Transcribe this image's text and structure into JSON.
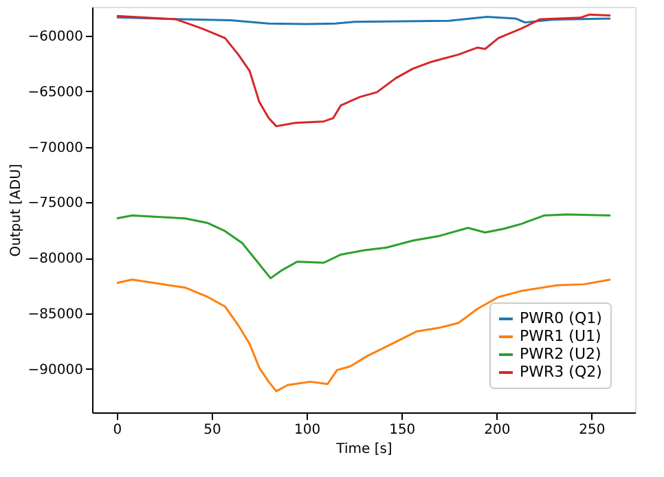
{
  "chart_data": {
    "type": "line",
    "xlabel": "Time [s]",
    "ylabel": "Output [ADU]",
    "xlim": [
      -13,
      273
    ],
    "ylim": [
      -93900,
      -57400
    ],
    "xticks": [
      0,
      50,
      100,
      150,
      200,
      250
    ],
    "yticks": [
      -60000,
      -65000,
      -70000,
      -75000,
      -80000,
      -85000,
      -90000
    ],
    "grid": false,
    "legend": "bottom right",
    "marker": "none",
    "line_style": "solid",
    "series": [
      {
        "name": "PWR0 (Q1)",
        "color": "#1f77b4",
        "x": [
          0,
          30,
          60,
          80,
          100,
          115,
          125,
          150,
          175,
          195,
          210,
          215,
          230,
          260
        ],
        "values": [
          -58350,
          -58500,
          -58600,
          -58900,
          -58950,
          -58900,
          -58750,
          -58700,
          -58650,
          -58300,
          -58450,
          -58800,
          -58550,
          -58450
        ]
      },
      {
        "name": "PWR1 (U1)",
        "color": "#ff7f0e",
        "x": [
          0,
          8,
          36,
          48,
          57,
          64,
          70,
          75,
          80,
          84,
          90,
          102,
          111,
          116,
          123,
          132,
          147,
          158,
          170,
          180,
          190,
          201,
          213,
          232,
          246,
          260
        ],
        "values": [
          -82250,
          -81950,
          -82670,
          -83520,
          -84370,
          -86060,
          -87750,
          -89870,
          -91140,
          -91990,
          -91440,
          -91140,
          -91350,
          -90090,
          -89750,
          -88820,
          -87550,
          -86610,
          -86280,
          -85840,
          -84570,
          -83520,
          -82970,
          -82460,
          -82370,
          -81950
        ]
      },
      {
        "name": "PWR2 (U2)",
        "color": "#2ca02c",
        "x": [
          0,
          8,
          36,
          48,
          57,
          66,
          74,
          81,
          87,
          95,
          109,
          118,
          130,
          142,
          156,
          170,
          185,
          194,
          204,
          213,
          225,
          237,
          260
        ],
        "values": [
          -76440,
          -76180,
          -76440,
          -76860,
          -77580,
          -78650,
          -80340,
          -81830,
          -81100,
          -80340,
          -80430,
          -79700,
          -79320,
          -79070,
          -78430,
          -78010,
          -77290,
          -77710,
          -77370,
          -76940,
          -76180,
          -76090,
          -76180
        ]
      },
      {
        "name": "PWR3 (Q2)",
        "color": "#d62728",
        "x": [
          0,
          31,
          45,
          57,
          64,
          70,
          75,
          80,
          84,
          94,
          109,
          114,
          118,
          128,
          137,
          147,
          156,
          166,
          180,
          190,
          194,
          201,
          213,
          223,
          244,
          249,
          260
        ],
        "values": [
          -58220,
          -58510,
          -59360,
          -60210,
          -61690,
          -63180,
          -65930,
          -67410,
          -68140,
          -67840,
          -67710,
          -67410,
          -66270,
          -65510,
          -65080,
          -63810,
          -62960,
          -62330,
          -61690,
          -61060,
          -61190,
          -60210,
          -59360,
          -58510,
          -58380,
          -58090,
          -58180
        ]
      }
    ]
  }
}
